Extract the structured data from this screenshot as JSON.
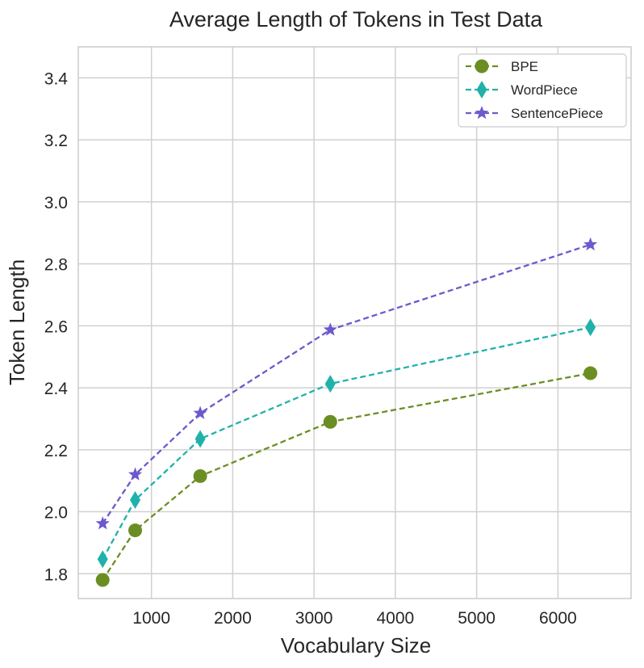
{
  "chart_data": {
    "type": "line",
    "title": "Average Length of Tokens in Test Data",
    "xlabel": "Vocabulary Size",
    "ylabel": "Token Length",
    "x": [
      400,
      800,
      1600,
      3200,
      6400
    ],
    "xlim": [
      100,
      6900
    ],
    "ylim": [
      1.72,
      3.5
    ],
    "xticks": [
      1000,
      2000,
      3000,
      4000,
      5000,
      6000
    ],
    "xtick_labels": [
      "1000",
      "2000",
      "3000",
      "4000",
      "5000",
      "6000"
    ],
    "yticks": [
      1.8,
      2.0,
      2.2,
      2.4,
      2.6,
      2.8,
      3.0,
      3.2,
      3.4
    ],
    "ytick_labels": [
      "1.8",
      "2.0",
      "2.2",
      "2.4",
      "2.6",
      "2.8",
      "3.0",
      "3.2",
      "3.4"
    ],
    "grid": true,
    "legend_position": "top-right",
    "series": [
      {
        "name": "BPE",
        "values": [
          1.78,
          1.94,
          2.115,
          2.29,
          2.447
        ],
        "color": "#6b8e23",
        "marker": "circle",
        "line_style": "dashed"
      },
      {
        "name": "WordPiece",
        "values": [
          1.847,
          2.038,
          2.235,
          2.413,
          2.595
        ],
        "color": "#20b2aa",
        "marker": "diamond",
        "line_style": "dashed"
      },
      {
        "name": "SentencePiece",
        "values": [
          1.962,
          2.12,
          2.318,
          2.587,
          2.862
        ],
        "color": "#6a5acd",
        "marker": "star",
        "line_style": "dashed"
      }
    ]
  }
}
